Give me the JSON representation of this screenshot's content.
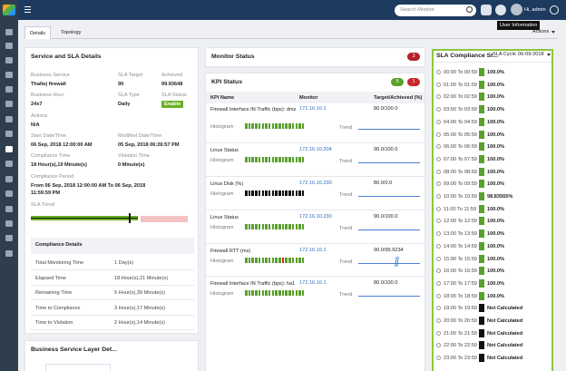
{
  "topbar": {
    "search_placeholder": "Search Monitor",
    "user": "Hi, admin",
    "tooltip": "User Information"
  },
  "tabs": [
    "Details",
    "Topology"
  ],
  "actions": "Actions",
  "sla_details": {
    "title": "Service and SLA Details",
    "fields": [
      {
        "label": "Business Service",
        "value": "Thaltej firewall"
      },
      {
        "label": "SLA Target",
        "value": "90"
      },
      {
        "label": "Achieved",
        "value": "99.93648"
      },
      {
        "label": "Business Hour",
        "value": "24x7"
      },
      {
        "label": "SLA Type",
        "value": "Daily"
      },
      {
        "label": "SLA Status",
        "value": "Enable"
      },
      {
        "label": "Actions",
        "value": "N/A"
      },
      {
        "label": "Start Date/Time",
        "value": "06 Sep, 2018 12:00:00 AM"
      },
      {
        "label": "Modified Date/Time",
        "value": "05 Sep, 2018 06:26:57 PM"
      },
      {
        "label": "Compliance Time",
        "value": "18 Hour(s),19 Minute(s)"
      },
      {
        "label": "Violation Time",
        "value": "0 Minute(s)"
      },
      {
        "label": "Compliance Period",
        "value": "From 06 Sep, 2018 12:00:00 AM To 06 Sep, 2018 11:59:59 PM"
      }
    ],
    "trend_label": "SLA Trend"
  },
  "compliance_details": {
    "title": "Compliance Details",
    "rows": [
      [
        "Total Monitoring Time",
        "1 Day(s)"
      ],
      [
        "Elapsed Time",
        "18 Hour(s),21 Minute(s)"
      ],
      [
        "Remaining Time",
        "5 Hour(s),39 Minute(s)"
      ],
      [
        "Time to Compliance",
        "3 Hour(s),17 Minute(s)"
      ],
      [
        "Time to Violation",
        "2 Hour(s),14 Minute(s)"
      ]
    ]
  },
  "layer_panel": {
    "title": "Business Service Layer Det..."
  },
  "monitor_status": {
    "title": "Monitor Status",
    "count": 3
  },
  "kpi_status": {
    "title": "KPI Status",
    "up": 5,
    "down": 1,
    "columns": [
      "KPI Name",
      "Monitor",
      "Target/Achieved (%)"
    ],
    "histogram_label": "Histogram",
    "trend_label": "Trend",
    "rows": [
      {
        "name": "Firewall Interface IN Traffic (bps): dmz",
        "monitor": "172.16.10.1",
        "target": "80.0/100.0",
        "color": "#5aa02c"
      },
      {
        "name": "Linux Status",
        "monitor": "172.16.10.204",
        "target": "90.0/100.0",
        "color": "#5aa02c"
      },
      {
        "name": "Linux Disk (%)",
        "monitor": "172.16.10.230",
        "target": "80.0/0.0",
        "color": "#111111"
      },
      {
        "name": "Linux Status",
        "monitor": "172.16.10.230",
        "target": "90.0/100.0",
        "color": "#5aa02c"
      },
      {
        "name": "Firewall RTT (ms)",
        "monitor": "172.16.10.1",
        "target": "90.0/99.9234",
        "color": "#5aa02c"
      },
      {
        "name": "Firewall Interface IN Traffic (bps): ha1",
        "monitor": "172.16.10.1",
        "target": "80.0/100.0",
        "color": "#5aa02c"
      }
    ]
  },
  "sla_compliance": {
    "title": "SLA Compliance St...",
    "cycle_label": "SLA Cycle",
    "cycle": "06-09-2018",
    "hours": [
      {
        "range": "00:00 To 00:59",
        "value": "100.0%",
        "color": "#5aa02c"
      },
      {
        "range": "01:00 To 01:59",
        "value": "100.0%",
        "color": "#5aa02c"
      },
      {
        "range": "02:00 To 02:59",
        "value": "100.0%",
        "color": "#5aa02c"
      },
      {
        "range": "03:00 To 03:59",
        "value": "100.0%",
        "color": "#5aa02c"
      },
      {
        "range": "04:00 To 04:59",
        "value": "100.0%",
        "color": "#5aa02c"
      },
      {
        "range": "05:00 To 05:59",
        "value": "100.0%",
        "color": "#5aa02c"
      },
      {
        "range": "06:00 To 06:59",
        "value": "100.0%",
        "color": "#5aa02c"
      },
      {
        "range": "07:00 To 07:59",
        "value": "100.0%",
        "color": "#5aa02c"
      },
      {
        "range": "08:00 To 08:59",
        "value": "100.0%",
        "color": "#5aa02c"
      },
      {
        "range": "09:00 To 09:59",
        "value": "100.0%",
        "color": "#5aa02c"
      },
      {
        "range": "10:00 To 10:59",
        "value": "98.83565%",
        "color": "#5aa02c"
      },
      {
        "range": "11:00 To 11:59",
        "value": "100.0%",
        "color": "#5aa02c"
      },
      {
        "range": "12:00 To 12:59",
        "value": "100.0%",
        "color": "#5aa02c"
      },
      {
        "range": "13:00 To 13:59",
        "value": "100.0%",
        "color": "#5aa02c"
      },
      {
        "range": "14:00 To 14:59",
        "value": "100.0%",
        "color": "#5aa02c"
      },
      {
        "range": "15:00 To 15:59",
        "value": "100.0%",
        "color": "#5aa02c"
      },
      {
        "range": "16:00 To 16:59",
        "value": "100.0%",
        "color": "#5aa02c"
      },
      {
        "range": "17:00 To 17:59",
        "value": "100.0%",
        "color": "#5aa02c"
      },
      {
        "range": "18:00 To 18:59",
        "value": "100.0%",
        "color": "#5aa02c"
      },
      {
        "range": "19:00 To 19:59",
        "value": "Not Calculated",
        "color": "#111111"
      },
      {
        "range": "20:00 To 20:59",
        "value": "Not Calculated",
        "color": "#111111"
      },
      {
        "range": "21:00 To 21:59",
        "value": "Not Calculated",
        "color": "#111111"
      },
      {
        "range": "22:00 To 22:59",
        "value": "Not Calculated",
        "color": "#111111"
      },
      {
        "range": "23:00 To 23:59",
        "value": "Not Calculated",
        "color": "#111111"
      }
    ]
  }
}
